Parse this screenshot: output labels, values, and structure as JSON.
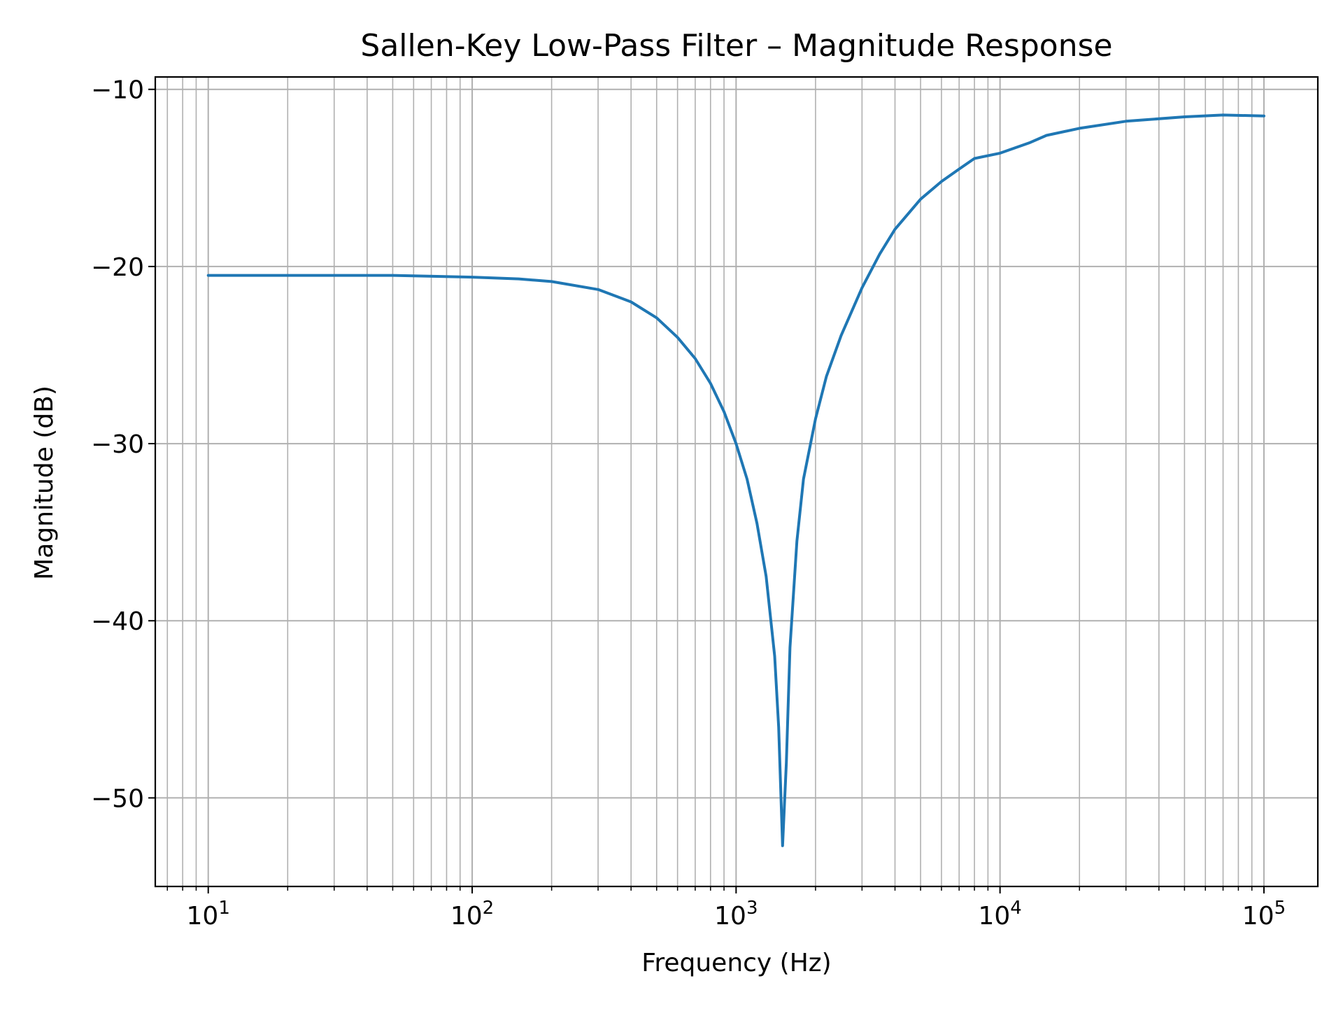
{
  "chart_data": {
    "type": "line",
    "title": "Sallen-Key Low-Pass Filter – Magnitude Response",
    "xlabel": "Frequency (Hz)",
    "ylabel": "Magnitude (dB)",
    "x_scale": "log",
    "xlim": [
      6.3,
      160000
    ],
    "ylim": [
      -55.0,
      -9.3
    ],
    "grid": "both",
    "x_major_ticks": [
      10,
      100,
      1000,
      10000,
      100000
    ],
    "x_tick_labels": [
      {
        "base": "10",
        "exp": "1"
      },
      {
        "base": "10",
        "exp": "2"
      },
      {
        "base": "10",
        "exp": "3"
      },
      {
        "base": "10",
        "exp": "4"
      },
      {
        "base": "10",
        "exp": "5"
      }
    ],
    "y_ticks": [
      -10,
      -20,
      -30,
      -40,
      -50
    ],
    "y_tick_labels": [
      "−10",
      "−20",
      "−30",
      "−40",
      "−50"
    ],
    "series": [
      {
        "color": "#1f77b4",
        "x": [
          10,
          20,
          50,
          100,
          150,
          200,
          300,
          400,
          500,
          600,
          700,
          800,
          900,
          1000,
          1100,
          1200,
          1300,
          1400,
          1450,
          1500,
          1550,
          1600,
          1700,
          1800,
          2000,
          2200,
          2500,
          3000,
          3500,
          4000,
          5000,
          6000,
          7000,
          8000,
          10000,
          13000,
          15000,
          20000,
          30000,
          50000,
          70000,
          100000
        ],
        "y": [
          -20.5,
          -20.5,
          -20.5,
          -20.6,
          -20.7,
          -20.85,
          -21.3,
          -22.0,
          -22.9,
          -24.0,
          -25.2,
          -26.6,
          -28.2,
          -30.0,
          -32.0,
          -34.5,
          -37.5,
          -42.0,
          -46.0,
          -52.7,
          -48.0,
          -41.5,
          -35.5,
          -32.0,
          -28.6,
          -26.2,
          -23.9,
          -21.2,
          -19.3,
          -17.9,
          -16.2,
          -15.2,
          -14.5,
          -13.9,
          -13.6,
          -13.0,
          -12.6,
          -12.2,
          -11.8,
          -11.55,
          -11.45,
          -11.5
        ]
      }
    ]
  }
}
